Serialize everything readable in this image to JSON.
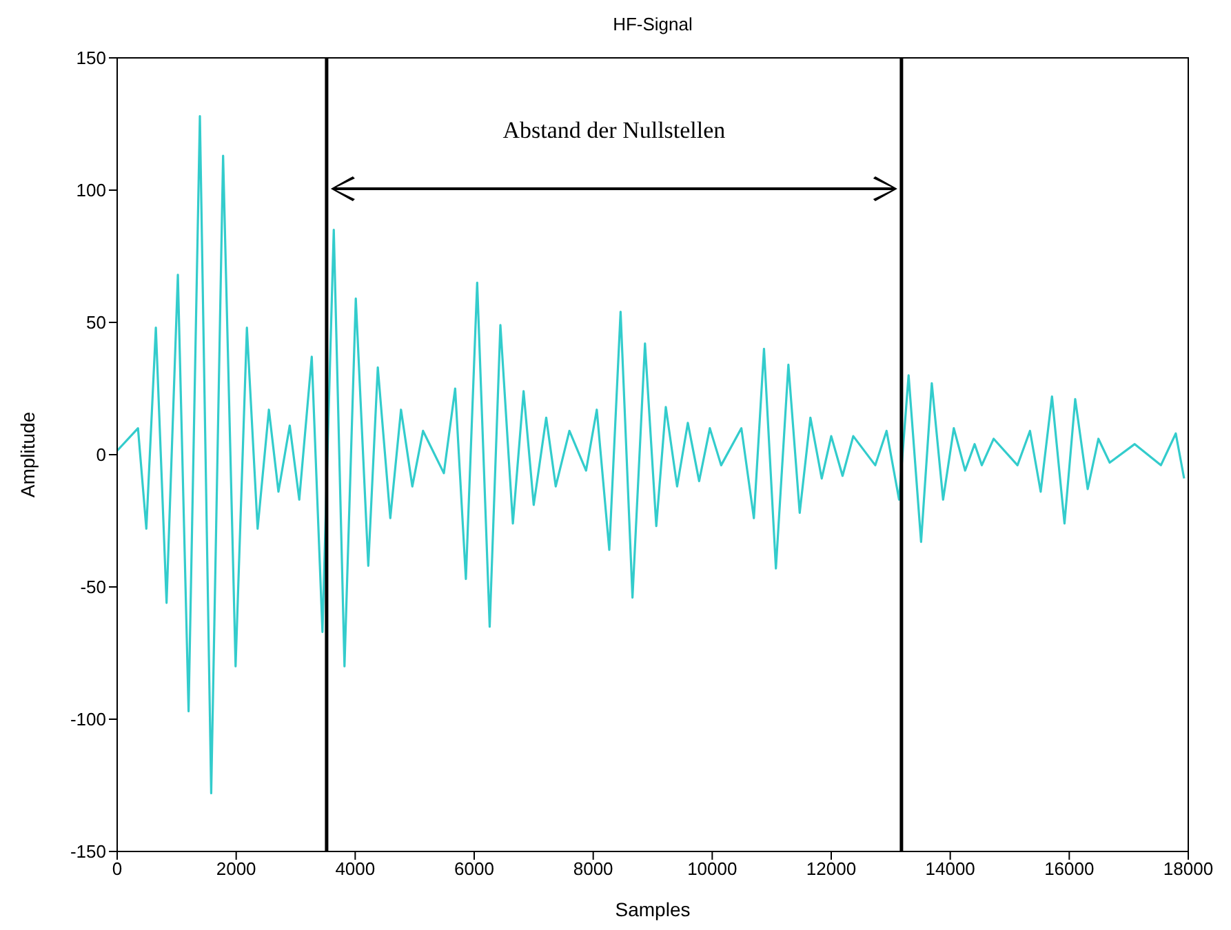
{
  "chart_data": {
    "type": "line",
    "title": "HF-Signal",
    "xlabel": "Samples",
    "ylabel": "Amplitude",
    "x": [
      0,
      350,
      490,
      650,
      830,
      1020,
      1200,
      1390,
      1580,
      1780,
      1990,
      2180,
      2360,
      2550,
      2710,
      2900,
      3060,
      3270,
      3450,
      3640,
      3820,
      4010,
      4220,
      4380,
      4590,
      4770,
      4960,
      5140,
      5490,
      5680,
      5860,
      6050,
      6260,
      6440,
      6650,
      6830,
      7000,
      7210,
      7370,
      7600,
      7880,
      8060,
      8270,
      8460,
      8660,
      8870,
      9060,
      9220,
      9410,
      9590,
      9780,
      9960,
      10150,
      10490,
      10700,
      10870,
      11070,
      11280,
      11470,
      11650,
      11840,
      12000,
      12190,
      12370,
      12740,
      12930,
      13140,
      13300,
      13510,
      13690,
      13880,
      14060,
      14250,
      14410,
      14530,
      14730,
      15130,
      15340,
      15520,
      15710,
      15920,
      16100,
      16310,
      16490,
      16680,
      17100,
      17540,
      17790,
      17930
    ],
    "series": [
      {
        "color": "#33cccc",
        "values": [
          1.5,
          10,
          -28,
          48,
          -56,
          68,
          -97,
          128,
          -128,
          113,
          -80,
          48,
          -28,
          17,
          -14,
          11,
          -17,
          37,
          -67,
          85,
          -80,
          59,
          -42,
          33,
          -24,
          17,
          -12,
          9,
          -7,
          25,
          -47,
          65,
          -65,
          49,
          -26,
          24,
          -19,
          14,
          -12,
          9,
          -6,
          17,
          -36,
          54,
          -54,
          42,
          -27,
          18,
          -12,
          12,
          -10,
          10,
          -4,
          10,
          -24,
          40,
          -43,
          34,
          -22,
          14,
          -9,
          7,
          -8,
          7,
          -4,
          9,
          -17,
          30,
          -33,
          27,
          -17,
          10,
          -6,
          4,
          -4,
          6,
          -4,
          9,
          -14,
          22,
          -26,
          21,
          -13,
          6,
          -3,
          4,
          -4,
          8,
          -9
        ]
      }
    ],
    "xlim": [
      0,
      18000
    ],
    "xticks": [
      0,
      2000,
      4000,
      6000,
      8000,
      10000,
      12000,
      14000,
      16000,
      18000
    ],
    "ylim": [
      -150,
      150
    ],
    "yticks": [
      -150,
      -100,
      -50,
      0,
      50,
      100,
      150
    ],
    "grid": false,
    "legend": false,
    "marker": "none",
    "line_style": "solid",
    "ref_lines": [
      {
        "axis": "x",
        "value": 3520,
        "color": "#000000"
      },
      {
        "axis": "x",
        "value": 13180,
        "color": "#000000"
      }
    ],
    "annotations": [
      "Abstand der Nullstellen"
    ]
  }
}
